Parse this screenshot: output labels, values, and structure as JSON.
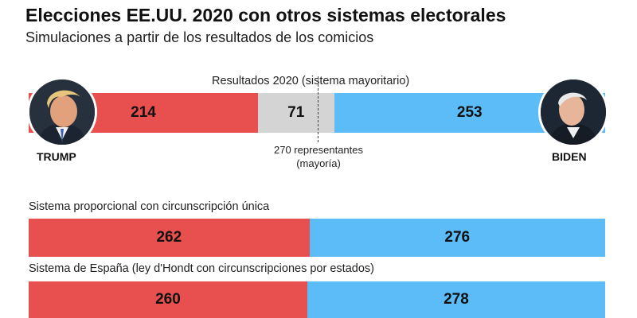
{
  "header": {
    "title": "Elecciones EE.UU. 2020 con otros sistemas electorales",
    "subtitle": "Simulaciones a partir de los resultados de los comicios"
  },
  "candidates": {
    "left": {
      "name": "TRUMP",
      "color": "#e8504f"
    },
    "right": {
      "name": "BIDEN",
      "color": "#5bbcf7"
    }
  },
  "majority": {
    "line1": "270 representantes",
    "line2": "(mayoría)"
  },
  "chart_data": {
    "type": "bar",
    "orientation": "horizontal-stacked",
    "total": 538,
    "majority_threshold": 270,
    "segments": [
      {
        "label": "Resultados 2020 (sistema mayoritario)",
        "values": {
          "trump": 214,
          "undecided": 71,
          "biden": 253
        },
        "labels": {
          "trump": "214",
          "undecided": "71",
          "biden": "253"
        }
      },
      {
        "label": "Sistema proporcional con circunscripción única",
        "values": {
          "trump": 262,
          "biden": 276
        },
        "labels": {
          "trump": "262",
          "biden": "276"
        }
      },
      {
        "label": "Sistema de España (ley d'Hondt con circunscripciones por estados)",
        "values": {
          "trump": 260,
          "biden": 278
        },
        "labels": {
          "trump": "260",
          "biden": "278"
        }
      }
    ],
    "colors": {
      "trump": "#e8504f",
      "undecided": "#d4d4d4",
      "biden": "#5bbcf7"
    }
  }
}
